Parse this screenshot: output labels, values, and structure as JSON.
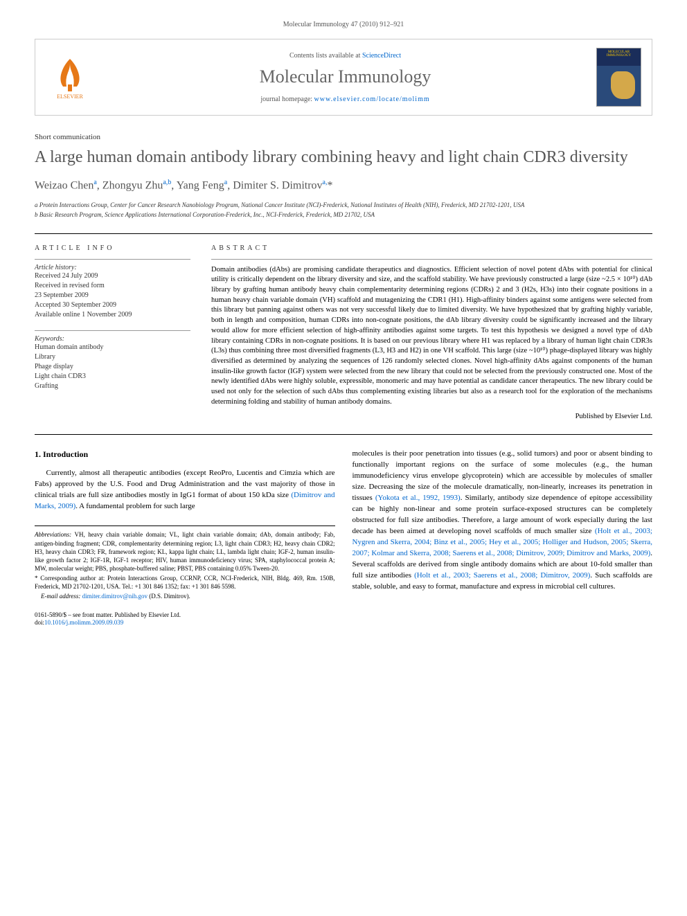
{
  "page_header": "Molecular Immunology 47 (2010) 912–921",
  "journal_box": {
    "contents_text": "Contents lists available at ",
    "contents_link": "ScienceDirect",
    "journal_name": "Molecular Immunology",
    "homepage_label": "journal homepage: ",
    "homepage_url": "www.elsevier.com/locate/molimm",
    "publisher": "ELSEVIER"
  },
  "article_type": "Short communication",
  "title": "A large human domain antibody library combining heavy and light chain CDR3 diversity",
  "authors_html": "Weizao Chen<sup>a</sup>, Zhongyu Zhu<sup>a,b</sup>, Yang Feng<sup>a</sup>, Dimiter S. Dimitrov<sup>a,</sup><span class='star'>*</span>",
  "affiliations": {
    "a": "a Protein Interactions Group, Center for Cancer Research Nanobiology Program, National Cancer Institute (NCI)-Frederick, National Institutes of Health (NIH), Frederick, MD 21702-1201, USA",
    "b": "b Basic Research Program, Science Applications International Corporation-Frederick, Inc., NCI-Frederick, Frederick, MD 21702, USA"
  },
  "article_info": {
    "label": "ARTICLE INFO",
    "history_heading": "Article history:",
    "history": [
      "Received 24 July 2009",
      "Received in revised form",
      "23 September 2009",
      "Accepted 30 September 2009",
      "Available online 1 November 2009"
    ],
    "keywords_heading": "Keywords:",
    "keywords": [
      "Human domain antibody",
      "Library",
      "Phage display",
      "Light chain CDR3",
      "Grafting"
    ]
  },
  "abstract": {
    "label": "ABSTRACT",
    "text": "Domain antibodies (dAbs) are promising candidate therapeutics and diagnostics. Efficient selection of novel potent dAbs with potential for clinical utility is critically dependent on the library diversity and size, and the scaffold stability. We have previously constructed a large (size ~2.5 × 10¹⁰) dAb library by grafting human antibody heavy chain complementarity determining regions (CDRs) 2 and 3 (H2s, H3s) into their cognate positions in a human heavy chain variable domain (VH) scaffold and mutagenizing the CDR1 (H1). High-affinity binders against some antigens were selected from this library but panning against others was not very successful likely due to limited diversity. We have hypothesized that by grafting highly variable, both in length and composition, human CDRs into non-cognate positions, the dAb library diversity could be significantly increased and the library would allow for more efficient selection of high-affinity antibodies against some targets. To test this hypothesis we designed a novel type of dAb library containing CDRs in non-cognate positions. It is based on our previous library where H1 was replaced by a library of human light chain CDR3s (L3s) thus combining three most diversified fragments (L3, H3 and H2) in one VH scaffold. This large (size ~10¹⁰) phage-displayed library was highly diversified as determined by analyzing the sequences of 126 randomly selected clones. Novel high-affinity dAbs against components of the human insulin-like growth factor (IGF) system were selected from the new library that could not be selected from the previously constructed one. Most of the newly identified dAbs were highly soluble, expressible, monomeric and may have potential as candidate cancer therapeutics. The new library could be used not only for the selection of such dAbs thus complementing existing libraries but also as a research tool for the exploration of the mechanisms determining folding and stability of human antibody domains.",
    "publisher_line": "Published by Elsevier Ltd."
  },
  "body": {
    "section_number": "1.",
    "section_title": "Introduction",
    "left_para": "Currently, almost all therapeutic antibodies (except ReoPro, Lucentis and Cimzia which are Fabs) approved by the U.S. Food and Drug Administration and the vast majority of those in clinical trials are full size antibodies mostly in IgG1 format of about 150 kDa size ",
    "left_cite": "(Dimitrov and Marks, 2009)",
    "left_tail": ". A fundamental problem for such large",
    "right_para_1": "molecules is their poor penetration into tissues (e.g., solid tumors) and poor or absent binding to functionally important regions on the surface of some molecules (e.g., the human immunodeficiency virus envelope glycoprotein) which are accessible by molecules of smaller size. Decreasing the size of the molecule dramatically, non-linearly, increases its penetration in tissues ",
    "right_cite_1": "(Yokota et al., 1992, 1993)",
    "right_para_2": ". Similarly, antibody size dependence of epitope accessibility can be highly non-linear and some protein surface-exposed structures can be completely obstructed for full size antibodies. Therefore, a large amount of work especially during the last decade has been aimed at developing novel scaffolds of much smaller size ",
    "right_cite_2": "(Holt et al., 2003; Nygren and Skerra, 2004; Binz et al., 2005; Hey et al., 2005; Holliger and Hudson, 2005; Skerra, 2007; Kolmar and Skerra, 2008; Saerens et al., 2008; Dimitrov, 2009; Dimitrov and Marks, 2009)",
    "right_para_3": ". Several scaffolds are derived from single antibody domains which are about 10-fold smaller than full size antibodies ",
    "right_cite_3": "(Holt et al., 2003; Saerens et al., 2008; Dimitrov, 2009)",
    "right_para_4": ". Such scaffolds are stable, soluble, and easy to format, manufacture and express in microbial cell cultures."
  },
  "footnotes": {
    "abbrev_label": "Abbreviations:",
    "abbrev_text": " VH, heavy chain variable domain; VL, light chain variable domain; dAb, domain antibody; Fab, antigen-binding fragment; CDR, complementarity determining region; L3, light chain CDR3; H2, heavy chain CDR2; H3, heavy chain CDR3; FR, framework region; KL, kappa light chain; LL, lambda light chain; IGF-2, human insulin-like growth factor 2; IGF-1R, IGF-1 receptor; HIV, human immunodeficiency virus; SPA, staphylococcal protein A; MW, molecular weight; PBS, phosphate-buffered saline; PBST, PBS containing 0.05% Tween-20.",
    "corr_label": "* Corresponding author at:",
    "corr_text": " Protein Interactions Group, CCRNP, CCR, NCI-Frederick, NIH, Bldg. 469, Rm. 150B, Frederick, MD 21702-1201, USA. Tel.: +1 301 846 1352; fax: +1 301 846 5598.",
    "email_label": "E-mail address: ",
    "email": "dimiter.dimitrov@nih.gov",
    "email_tail": " (D.S. Dimitrov)."
  },
  "copyright": {
    "line1": "0161-5890/$ – see front matter. Published by Elsevier Ltd.",
    "doi_label": "doi:",
    "doi": "10.1016/j.molimm.2009.09.039"
  }
}
